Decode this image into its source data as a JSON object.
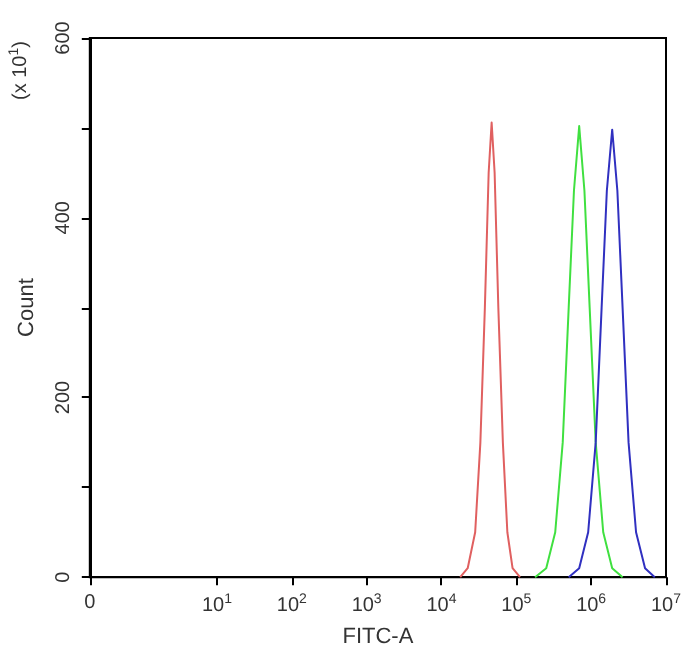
{
  "chart_data": {
    "type": "line",
    "xlabel": "FITC-A",
    "ylabel": "Count",
    "annotations": [
      "(x 10$^{1}$)"
    ],
    "log": "x",
    "xlim": [
      0.2,
      10000000
    ],
    "ylim": [
      0,
      600
    ],
    "xticks": [
      {
        "value": 0.2,
        "label": "0"
      },
      {
        "value": 10,
        "label": "10$^{1}$"
      },
      {
        "value": 100,
        "label": "10$^{2}$"
      },
      {
        "value": 1000,
        "label": "10$^{3}$"
      },
      {
        "value": 10000,
        "label": "10$^{4}$"
      },
      {
        "value": 100000,
        "label": "10$^{5}$"
      },
      {
        "value": 1000000,
        "label": "10$^{6}$"
      },
      {
        "value": 10000000,
        "label": "10$^{7}$"
      }
    ],
    "yticks": [
      0,
      {
        "value": 100,
        "label": null
      },
      200,
      {
        "value": 300,
        "label": null
      },
      400,
      {
        "value": 500,
        "label": null
      },
      600
    ],
    "marker": "none",
    "line_style": "solid",
    "series": [
      {
        "color": "#e06060",
        "x": [
          17800,
          22400,
          28200,
          33100,
          38000,
          42700,
          46800,
          51300,
          57500,
          66100,
          75900,
          89100,
          112000
        ],
        "values": [
          0,
          10,
          50,
          150,
          300,
          450,
          506,
          450,
          300,
          150,
          50,
          10,
          0
        ]
      },
      {
        "color": "#40e040",
        "x": [
          178000,
          251000,
          331000,
          417000,
          501000,
          589000,
          692000,
          813000,
          955000,
          1150000,
          1450000,
          1910000,
          2630000
        ],
        "values": [
          0,
          10,
          50,
          150,
          300,
          430,
          502,
          430,
          300,
          150,
          50,
          10,
          0
        ]
      },
      {
        "color": "#3030c0",
        "x": [
          501000,
          692000,
          912000,
          1150000,
          1380000,
          1620000,
          1910000,
          2240000,
          2630000,
          3160000,
          3980000,
          5250000,
          7080000
        ],
        "values": [
          0,
          10,
          50,
          150,
          300,
          430,
          498,
          430,
          300,
          150,
          50,
          10,
          0
        ]
      }
    ]
  }
}
